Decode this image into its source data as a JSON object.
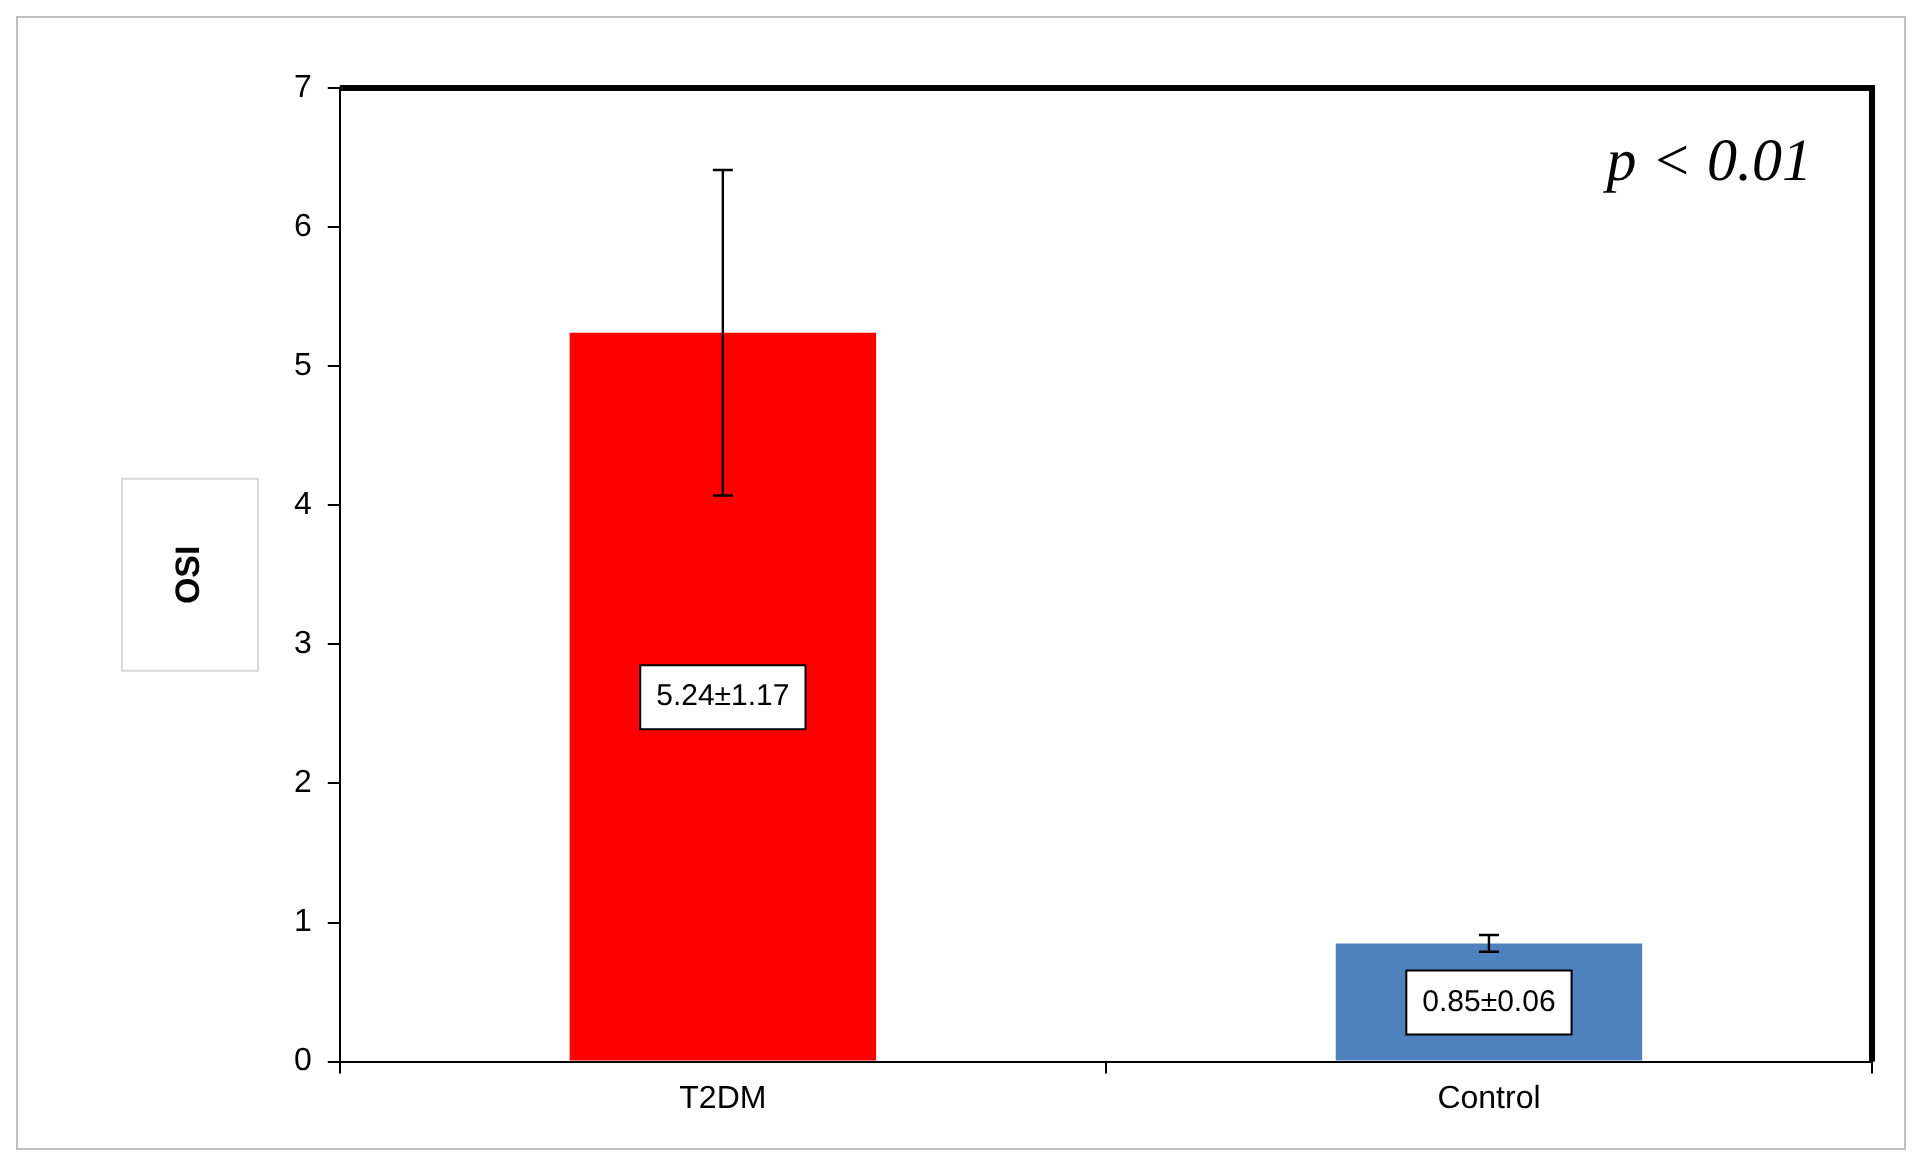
{
  "chart_data": {
    "type": "bar",
    "ylabel": "OSI",
    "categories": [
      "T2DM",
      "Control"
    ],
    "values": [
      5.24,
      0.85
    ],
    "colors": [
      "#ff0000",
      "#4f81bd"
    ],
    "errors": [
      1.17,
      0.06
    ],
    "value_labels": [
      "5.24±1.17",
      "0.85±0.06"
    ],
    "ylim": [
      0,
      7
    ],
    "yticks": [
      0,
      1,
      2,
      3,
      4,
      5,
      6,
      7
    ],
    "grid": false,
    "legend": false,
    "annotations": [
      "p < 0.01"
    ]
  }
}
